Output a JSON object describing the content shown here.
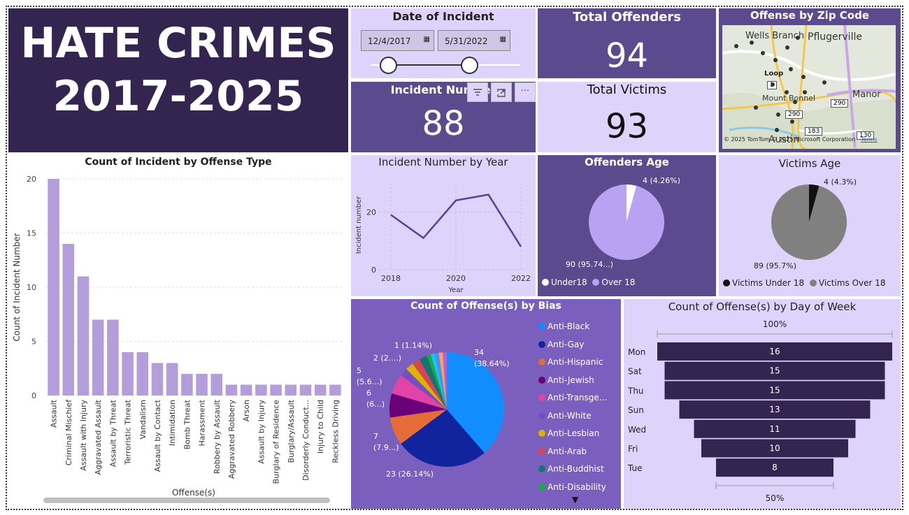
{
  "header": {
    "line1": "HATE CRIMES",
    "line2": "2017-2025"
  },
  "date_filter": {
    "title": "Date of Incident",
    "start": "12/4/2017",
    "end": "5/31/2022"
  },
  "kpi": {
    "incident_label": "Incident Number",
    "incident_value": "88",
    "offenders_label": "Total Offenders",
    "offenders_value": "94",
    "victims_label": "Total Victims",
    "victims_value": "93"
  },
  "map": {
    "title": "Offense by Zip Code",
    "places": [
      "Wells Branch",
      "Pflugerville",
      "Manor",
      "Mount Bonnel",
      "Loop",
      "Austin"
    ],
    "road_markers": [
      "1",
      "290",
      "290",
      "183",
      "130"
    ],
    "attribution": "© 2025 TomTom © 2025 Microsoft Corporation",
    "terms": "Terms"
  },
  "visual_header": {
    "filter_icon": "filter-icon",
    "focus_icon": "focus-mode-icon",
    "more_label": "···"
  },
  "colors": {
    "dark": "#33254f",
    "purple": "#5b4a8d",
    "lavender": "#ddd3fb",
    "bar": "#b39ddb"
  },
  "chart_data": [
    {
      "type": "bar",
      "title": "Count of Incident by Offense Type",
      "xlabel": "Offense(s)",
      "ylabel": "Count of Incident Number",
      "ylim": [
        0,
        20
      ],
      "yticks": [
        0,
        5,
        10,
        15,
        20
      ],
      "categories": [
        "Assault",
        "Criminal Mischief",
        "Assault with Injury",
        "Aggravated Assault",
        "Assault by Threat",
        "Terroristic Threat",
        "Vandalism",
        "Assault by Contact",
        "Intimidation",
        "Bomb Threat",
        "Harassment",
        "Robbery by Assault",
        "Aggravated Robbery",
        "Arson",
        "Assault by Injury",
        "Burglary of Residence",
        "Burglary/Assault",
        "Disorderly Conduct...",
        "Injury to Child",
        "Reckless Driving"
      ],
      "values": [
        20,
        14,
        11,
        7,
        7,
        4,
        4,
        3,
        3,
        2,
        2,
        2,
        1,
        1,
        1,
        1,
        1,
        1,
        1,
        1
      ]
    },
    {
      "type": "line",
      "title": "Incident Number by Year",
      "xlabel": "Year",
      "ylabel": "Incident number",
      "x": [
        2018,
        2019,
        2020,
        2021,
        2022
      ],
      "values": [
        19,
        11,
        24,
        26,
        8
      ],
      "xticks": [
        "2018",
        "2020",
        "2022"
      ],
      "yticks": [
        "0",
        "20"
      ],
      "ylim": [
        0,
        30
      ]
    },
    {
      "type": "pie",
      "title": "Offenders Age",
      "slices": [
        {
          "name": "Under18",
          "value": 4,
          "label": "4 (4.26%)",
          "color": "#ffffff"
        },
        {
          "name": "Over 18",
          "value": 90,
          "label": "90 (95.74...)",
          "color": "#b9a2f2"
        }
      ]
    },
    {
      "type": "pie",
      "title": "Victims Age",
      "slices": [
        {
          "name": "Victims Under 18",
          "value": 4,
          "label": "4 (4.3%)",
          "color": "#111111"
        },
        {
          "name": "Victims Over 18",
          "value": 89,
          "label": "89 (95.7%)",
          "color": "#808080"
        }
      ]
    },
    {
      "type": "pie",
      "title": "Count of Offense(s) by Bias",
      "slices": [
        {
          "name": "Anti-Black",
          "value": 34,
          "color": "#118dff"
        },
        {
          "name": "Anti-Gay",
          "value": 23,
          "color": "#12239e"
        },
        {
          "name": "Anti-Hispanic",
          "value": 7,
          "color": "#e66c37"
        },
        {
          "name": "Anti-Jewish",
          "value": 6,
          "color": "#6b007b"
        },
        {
          "name": "Anti-Transge...",
          "value": 5,
          "color": "#e044a7"
        },
        {
          "name": "Anti-White",
          "value": 2,
          "color": "#744ec2"
        },
        {
          "name": "Anti-Lesbian",
          "value": 2,
          "color": "#d9b300"
        },
        {
          "name": "Anti-Arab",
          "value": 2,
          "color": "#d64550"
        },
        {
          "name": "Anti-Buddhist",
          "value": 2,
          "color": "#197278"
        },
        {
          "name": "Anti-Disability",
          "value": 1,
          "color": "#1aab40"
        },
        {
          "name": "",
          "value": 1,
          "color": "#15c6f4"
        },
        {
          "name": "",
          "value": 1,
          "color": "#4092ff"
        },
        {
          "name": "",
          "value": 1,
          "color": "#ffa058"
        },
        {
          "name": "",
          "value": 1,
          "color": "#be5dc9"
        }
      ],
      "labels": [
        {
          "top": "34",
          "bottom": "(38.64%)"
        },
        {
          "top": "23 (26.14%)",
          "bottom": ""
        },
        {
          "top": "7",
          "bottom": "(7.9...)"
        },
        {
          "top": "6",
          "bottom": "(6...)"
        },
        {
          "top": "5",
          "bottom": "(5.6...)"
        },
        {
          "top": "2 (2....)",
          "bottom": ""
        },
        {
          "top": "1 (1.14%)",
          "bottom": ""
        }
      ]
    },
    {
      "type": "funnel",
      "title": "Count of Offense(s) by Day of Week",
      "top_label": "100%",
      "bottom_label": "50%",
      "categories": [
        "Mon",
        "Sat",
        "Thu",
        "Sun",
        "Wed",
        "Fri",
        "Tue"
      ],
      "values": [
        16,
        15,
        15,
        13,
        11,
        10,
        8
      ]
    }
  ]
}
